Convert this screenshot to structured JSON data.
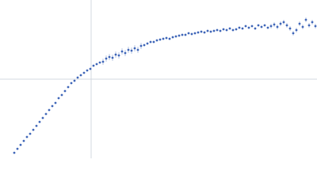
{
  "chart_data": {
    "type": "scatter",
    "color": "#3f66b8",
    "error_color": "#a9b9dd",
    "xlim": [
      0,
      400
    ],
    "ylim": [
      0,
      200
    ],
    "crosshair": {
      "x": 115,
      "y": 100
    },
    "x": [
      18,
      22,
      26,
      30,
      34,
      38,
      42,
      46,
      50,
      54,
      58,
      62,
      66,
      70,
      74,
      78,
      82,
      86,
      90,
      94,
      98,
      102,
      106,
      110,
      114,
      118,
      122,
      126,
      130,
      134,
      138,
      142,
      146,
      150,
      154,
      158,
      162,
      166,
      170,
      174,
      178,
      182,
      186,
      190,
      194,
      198,
      202,
      206,
      210,
      214,
      218,
      222,
      226,
      230,
      234,
      238,
      242,
      246,
      250,
      254,
      258,
      262,
      266,
      270,
      274,
      278,
      282,
      286,
      290,
      294,
      298,
      302,
      306,
      310,
      314,
      318,
      322,
      326,
      330,
      334,
      338,
      342,
      346,
      350,
      354,
      358,
      362,
      366,
      370,
      374,
      378,
      382,
      386,
      390,
      394,
      398
    ],
    "values": [
      7,
      12,
      17,
      22,
      27,
      31,
      36,
      41,
      46,
      51,
      56,
      61,
      66,
      70,
      76,
      80,
      85,
      90,
      95,
      98,
      102,
      105,
      108,
      111,
      113,
      117,
      119,
      121,
      122,
      126,
      128,
      127,
      131,
      130,
      135,
      133,
      137,
      136,
      139,
      137,
      142,
      143,
      145,
      147,
      147,
      149,
      150,
      151,
      152,
      151,
      153,
      154,
      155,
      156,
      156,
      158,
      157,
      158,
      159,
      160,
      159,
      161,
      160,
      161,
      162,
      161,
      163,
      162,
      164,
      162,
      163,
      165,
      164,
      167,
      165,
      167,
      164,
      168,
      166,
      168,
      165,
      167,
      169,
      166,
      170,
      172,
      168,
      164,
      158,
      162,
      170,
      166,
      175,
      168,
      172,
      167
    ],
    "errors": [
      0.5,
      0.5,
      0.5,
      0.5,
      0.5,
      0.5,
      0.5,
      0.5,
      0.5,
      0.5,
      0.5,
      0.5,
      0.5,
      0.5,
      0.5,
      0.5,
      0.5,
      0.5,
      0.5,
      0.5,
      0.5,
      0.5,
      0.5,
      0.5,
      0.5,
      0.5,
      0.5,
      0.5,
      4,
      4,
      4,
      4,
      4,
      4,
      4,
      4,
      4,
      4,
      4,
      4,
      4,
      1.5,
      1.5,
      1.5,
      1.5,
      1.5,
      1.5,
      1.5,
      1.5,
      1.5,
      1.5,
      1.5,
      1.5,
      1.5,
      1.5,
      1.5,
      1.5,
      1.5,
      1.5,
      1.5,
      1.5,
      1.5,
      1.5,
      1.5,
      1.5,
      1.5,
      1.5,
      1.5,
      1.5,
      1.5,
      1.5,
      1.5,
      1.5,
      1.5,
      1.5,
      1.5,
      1.5,
      1.5,
      1.5,
      1.5,
      1.5,
      3,
      3,
      3,
      3,
      3,
      3,
      3,
      3,
      3,
      3,
      3,
      3,
      3,
      3,
      3
    ]
  }
}
